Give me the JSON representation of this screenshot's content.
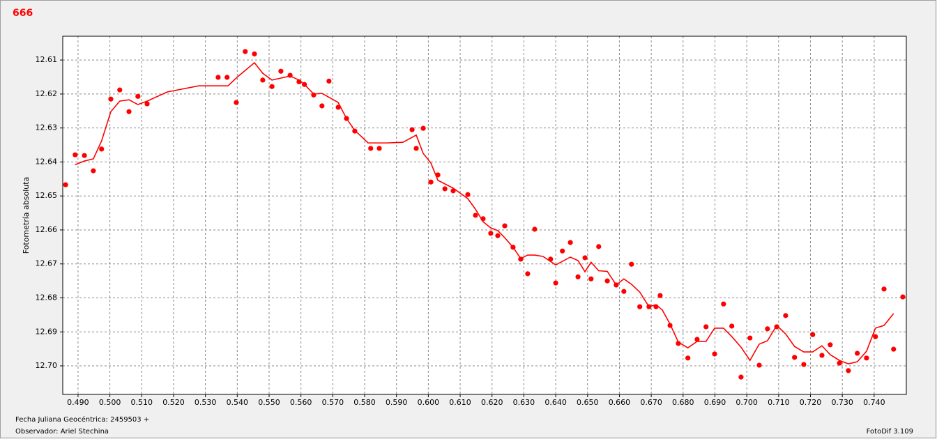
{
  "chart_data": {
    "type": "scatter",
    "title": "666",
    "y_label": "Fotometría absoluta",
    "footer_left": [
      "Fecha Juliana Geocéntrica: 2459503 +",
      "Observador: Ariel Stechina"
    ],
    "footer_right": "FotoDif 3.109",
    "xlim": [
      0.4852,
      0.7501
    ],
    "ylim": [
      12.603,
      12.7084
    ],
    "y_inverted": true,
    "grid": true,
    "xticks": [
      {
        "value": 0.49,
        "label": "0.490"
      },
      {
        "value": 0.5,
        "label": "0.500"
      },
      {
        "value": 0.51,
        "label": "0.510"
      },
      {
        "value": 0.52,
        "label": "0.520"
      },
      {
        "value": 0.53,
        "label": "0.530"
      },
      {
        "value": 0.54,
        "label": "0.540"
      },
      {
        "value": 0.55,
        "label": "0.550"
      },
      {
        "value": 0.56,
        "label": "0.560"
      },
      {
        "value": 0.57,
        "label": "0.570"
      },
      {
        "value": 0.58,
        "label": "0.580"
      },
      {
        "value": 0.59,
        "label": "0.590"
      },
      {
        "value": 0.6,
        "label": "0.600"
      },
      {
        "value": 0.61,
        "label": "0.610"
      },
      {
        "value": 0.62,
        "label": "0.620"
      },
      {
        "value": 0.63,
        "label": "0.630"
      },
      {
        "value": 0.64,
        "label": "0.640"
      },
      {
        "value": 0.65,
        "label": "0.650"
      },
      {
        "value": 0.66,
        "label": "0.660"
      },
      {
        "value": 0.67,
        "label": "0.670"
      },
      {
        "value": 0.68,
        "label": "0.680"
      },
      {
        "value": 0.69,
        "label": "0.690"
      },
      {
        "value": 0.7,
        "label": "0.700"
      },
      {
        "value": 0.71,
        "label": "0.710"
      },
      {
        "value": 0.72,
        "label": "0.720"
      },
      {
        "value": 0.73,
        "label": "0.730"
      },
      {
        "value": 0.74,
        "label": "0.740"
      }
    ],
    "yticks": [
      12.61,
      12.62,
      12.63,
      12.64,
      12.65,
      12.66,
      12.67,
      12.68,
      12.69,
      {
        "value": 12.7,
        "label": "12.70"
      }
    ],
    "series": [
      {
        "mode": "markers",
        "color": "#ff0000",
        "x": [
          0.4861,
          0.4891,
          0.492,
          0.4948,
          0.4974,
          0.5003,
          0.5031,
          0.506,
          0.5088,
          0.5117,
          0.534,
          0.5368,
          0.5397,
          0.5425,
          0.5454,
          0.548,
          0.5509,
          0.5537,
          0.5566,
          0.5594,
          0.5611,
          0.564,
          0.5666,
          0.5688,
          0.5717,
          0.5743,
          0.5769,
          0.5819,
          0.5846,
          0.5949,
          0.5962,
          0.5984,
          0.6008,
          0.603,
          0.6052,
          0.6078,
          0.6124,
          0.6148,
          0.6172,
          0.6196,
          0.6218,
          0.624,
          0.6266,
          0.629,
          0.6312,
          0.6334,
          0.6384,
          0.64,
          0.6421,
          0.6446,
          0.647,
          0.6492,
          0.6511,
          0.6535,
          0.6562,
          0.659,
          0.6614,
          0.6638,
          0.6664,
          0.6693,
          0.6715,
          0.6728,
          0.6759,
          0.6785,
          0.6815,
          0.6844,
          0.6872,
          0.6899,
          0.6927,
          0.6953,
          0.6982,
          0.701,
          0.7039,
          0.7065,
          0.7094,
          0.7122,
          0.715,
          0.7179,
          0.7207,
          0.7236,
          0.7262,
          0.7291,
          0.7319,
          0.7347,
          0.7376,
          0.7404,
          0.7431,
          0.7461,
          0.749
        ],
        "y": [
          12.6467,
          12.6379,
          12.6381,
          12.6426,
          12.6362,
          12.6215,
          12.6188,
          12.6252,
          12.6207,
          12.6229,
          12.6151,
          12.6151,
          12.6225,
          12.6075,
          12.6082,
          12.6159,
          12.6178,
          12.6133,
          12.6145,
          12.6164,
          12.6172,
          12.6203,
          12.6235,
          12.6162,
          12.6239,
          12.6272,
          12.6309,
          12.636,
          12.636,
          12.6305,
          12.636,
          12.6301,
          12.6459,
          12.6438,
          12.6479,
          12.6485,
          12.6496,
          12.6557,
          12.6567,
          12.661,
          12.6617,
          12.6588,
          12.6651,
          12.6686,
          12.6729,
          12.6598,
          12.6686,
          12.6756,
          12.6662,
          12.6637,
          12.6738,
          12.6682,
          12.6744,
          12.6649,
          12.675,
          12.6762,
          12.6781,
          12.6701,
          12.6826,
          12.6826,
          12.6826,
          12.6793,
          12.6881,
          12.6934,
          12.6977,
          12.6922,
          12.6885,
          12.6965,
          12.6818,
          12.6883,
          12.7033,
          12.6918,
          12.6998,
          12.6891,
          12.6885,
          12.6852,
          12.6975,
          12.6996,
          12.6908,
          12.6969,
          12.6938,
          12.6992,
          12.7014,
          12.6963,
          12.6977,
          12.6914,
          12.6774,
          12.6951,
          12.6797
        ]
      },
      {
        "mode": "line",
        "color": "#ff0000",
        "x": [
          0.4891,
          0.492,
          0.4948,
          0.4974,
          0.5003,
          0.5031,
          0.506,
          0.5088,
          0.5117,
          0.518,
          0.5279,
          0.5371,
          0.5399,
          0.5454,
          0.548,
          0.5509,
          0.5566,
          0.5594,
          0.5611,
          0.564,
          0.5666,
          0.5717,
          0.5743,
          0.5769,
          0.5811,
          0.587,
          0.592,
          0.5962,
          0.5984,
          0.6008,
          0.603,
          0.6078,
          0.6124,
          0.6148,
          0.6172,
          0.6196,
          0.6218,
          0.624,
          0.6266,
          0.629,
          0.6312,
          0.6334,
          0.636,
          0.64,
          0.6446,
          0.647,
          0.6492,
          0.6511,
          0.6535,
          0.6562,
          0.659,
          0.6614,
          0.6638,
          0.6664,
          0.6693,
          0.6715,
          0.6735,
          0.6759,
          0.6785,
          0.6815,
          0.6844,
          0.6872,
          0.6899,
          0.6927,
          0.6953,
          0.6982,
          0.701,
          0.7039,
          0.7065,
          0.7094,
          0.7122,
          0.715,
          0.7179,
          0.7207,
          0.7236,
          0.7262,
          0.7291,
          0.7319,
          0.7347,
          0.7376,
          0.7404,
          0.7431,
          0.7461
        ],
        "y": [
          12.6408,
          12.6397,
          12.6391,
          12.6338,
          12.6252,
          12.6221,
          12.6217,
          12.6231,
          12.6221,
          12.6194,
          12.6176,
          12.6176,
          12.6151,
          12.6108,
          12.6139,
          12.6159,
          12.6147,
          12.6159,
          12.6172,
          12.62,
          12.6198,
          12.6225,
          12.6272,
          12.6307,
          12.6344,
          12.6344,
          12.6342,
          12.6321,
          12.6375,
          12.6403,
          12.6454,
          12.6477,
          12.6508,
          12.6539,
          12.6576,
          12.6594,
          12.6602,
          12.6623,
          12.6651,
          12.6684,
          12.6674,
          12.6674,
          12.6678,
          12.6703,
          12.668,
          12.669,
          12.6723,
          12.6695,
          12.672,
          12.6722,
          12.6762,
          12.6744,
          12.676,
          12.6783,
          12.6826,
          12.682,
          12.6836,
          12.6877,
          12.693,
          12.6947,
          12.6928,
          12.6928,
          12.6889,
          12.6889,
          12.6914,
          12.6945,
          12.6984,
          12.6936,
          12.6926,
          12.6881,
          12.6906,
          12.6943,
          12.6959,
          12.6959,
          12.6941,
          12.6967,
          12.6984,
          12.6994,
          12.6988,
          12.6957,
          12.6889,
          12.6881,
          12.6846
        ]
      }
    ]
  }
}
